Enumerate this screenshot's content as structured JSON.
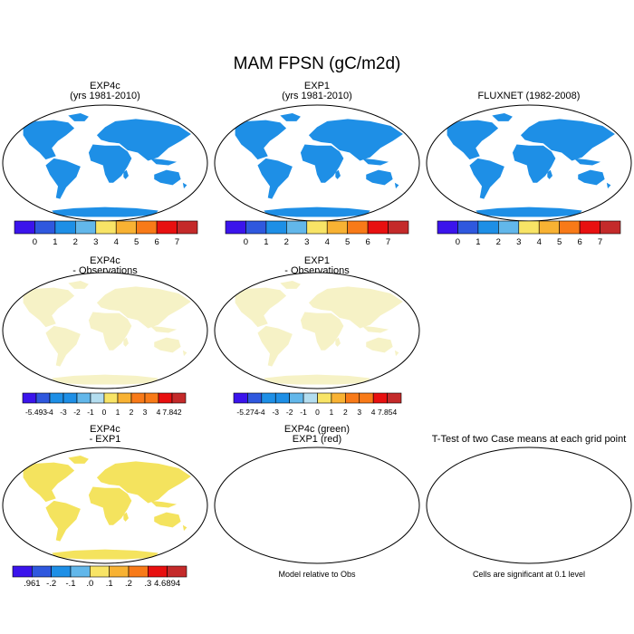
{
  "figure": {
    "title": "MAM FPSN (gC/m2d)"
  },
  "colors": {
    "scale": [
      "#3b14ec",
      "#2f58de",
      "#1e8fe6",
      "#62b7ea",
      "#b3ddef",
      "#f8e466",
      "#f8b233",
      "#f87a18",
      "#e81010",
      "#c42a2a"
    ],
    "land_base": "#f6f2c6",
    "green": "#22dd22",
    "red": "#ee0000",
    "coast": "#000000"
  },
  "chart_data": [
    {
      "type": "heatmap",
      "title": "EXP4c",
      "subtitle": "(yrs 1981-2010)",
      "colorbar_labels": [
        "0",
        "1",
        "2",
        "3",
        "4",
        "5",
        "6",
        "7"
      ]
    },
    {
      "type": "heatmap",
      "title": "EXP1",
      "subtitle": "(yrs 1981-2010)",
      "colorbar_labels": [
        "0",
        "1",
        "2",
        "3",
        "4",
        "5",
        "6",
        "7"
      ]
    },
    {
      "type": "heatmap",
      "title": "FLUXNET (1982-2008)",
      "subtitle": "",
      "colorbar_labels": [
        "0",
        "1",
        "2",
        "3",
        "4",
        "5",
        "6",
        "7"
      ]
    },
    {
      "type": "heatmap",
      "title": "EXP4c",
      "subtitle": "- Observations",
      "colorbar_labels": [
        "-5.493",
        "-4",
        "-3",
        "-2",
        "-1",
        "0",
        "1",
        "2",
        "3",
        "4",
        "7.842"
      ]
    },
    {
      "type": "heatmap",
      "title": "EXP1",
      "subtitle": "- Observations",
      "colorbar_labels": [
        "-5.274",
        "-4",
        "-3",
        "-2",
        "-1",
        "0",
        "1",
        "2",
        "3",
        "4",
        "7.854"
      ]
    },
    {
      "type": "heatmap",
      "title": "EXP4c",
      "subtitle": "- EXP1",
      "colorbar_labels": [
        ".961",
        "-.2",
        "-.1",
        ".0",
        ".1",
        ".2",
        ".3",
        "4.6894"
      ]
    },
    {
      "type": "heatmap",
      "title": "EXP4c (green)",
      "subtitle": "EXP1 (red)",
      "footer": "Model relative to Obs"
    },
    {
      "type": "heatmap",
      "title": "T-Test of two Case means at each grid point",
      "subtitle": "",
      "footer": "Cells are significant at 0.1 level"
    }
  ]
}
